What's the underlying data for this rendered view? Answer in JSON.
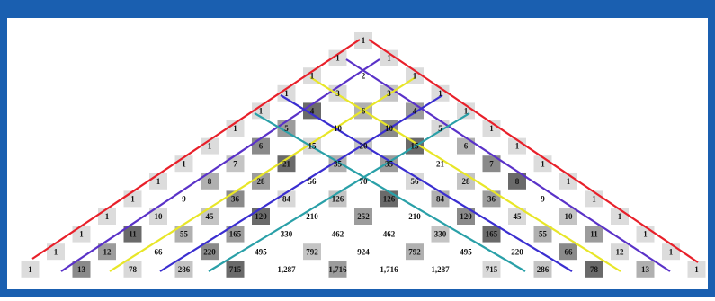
{
  "triangle": {
    "rows": [
      [
        "1"
      ],
      [
        "1",
        "1"
      ],
      [
        "1",
        "2",
        "1"
      ],
      [
        "1",
        "3",
        "3",
        "1"
      ],
      [
        "1",
        "4",
        "6",
        "4",
        "1"
      ],
      [
        "1",
        "5",
        "10",
        "10",
        "5",
        "1"
      ],
      [
        "1",
        "6",
        "15",
        "20",
        "15",
        "6",
        "1"
      ],
      [
        "1",
        "7",
        "21",
        "35",
        "35",
        "21",
        "7",
        "1"
      ],
      [
        "1",
        "8",
        "28",
        "56",
        "70",
        "56",
        "28",
        "8",
        "1"
      ],
      [
        "1",
        "9",
        "36",
        "84",
        "126",
        "126",
        "84",
        "36",
        "9",
        "1"
      ],
      [
        "1",
        "10",
        "45",
        "120",
        "210",
        "252",
        "210",
        "120",
        "45",
        "10",
        "1"
      ],
      [
        "1",
        "11",
        "55",
        "165",
        "330",
        "462",
        "462",
        "330",
        "165",
        "55",
        "11",
        "1"
      ],
      [
        "1",
        "12",
        "66",
        "220",
        "495",
        "792",
        "924",
        "792",
        "495",
        "220",
        "66",
        "12",
        "1"
      ],
      [
        "1",
        "13",
        "78",
        "286",
        "715",
        "1,287",
        "1,716",
        "1,716",
        "1,287",
        "715",
        "286",
        "78",
        "13",
        "1"
      ]
    ]
  }
}
